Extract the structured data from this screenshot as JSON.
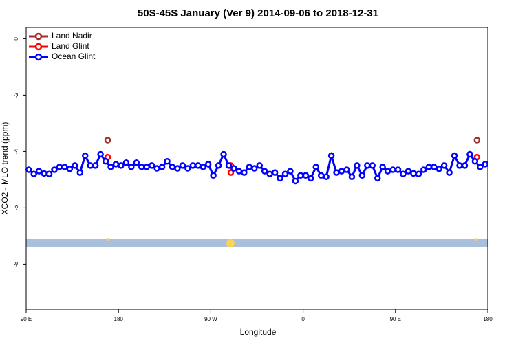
{
  "chart_data": {
    "type": "line",
    "title": "50S-45S January (Ver 9)   2014-09-06 to 2018-12-31",
    "x_label": "Longitude",
    "y_label": "XCO2 - MLO trend (ppm)",
    "xlim": [
      90,
      540
    ],
    "ylim": [
      -9.6,
      0.4
    ],
    "xticks": [
      {
        "value": 90,
        "label": "90 E"
      },
      180,
      {
        "value": 270,
        "label": "90 W"
      },
      {
        "value": 360,
        "label": "0"
      },
      {
        "value": 450,
        "label": "90 E"
      },
      {
        "value": 540,
        "label": "180"
      }
    ],
    "yticks": [
      0,
      -2,
      -4,
      -6,
      -8
    ],
    "legend": "top-left",
    "series": [
      {
        "name": "Land Nadir",
        "color": "#a52a2a",
        "x": [
          169.5,
          529.5
        ],
        "values": [
          -3.6,
          -3.6
        ]
      },
      {
        "name": "Land Glint",
        "color": "#ff0000",
        "x": [
          169.5,
          289.5,
          289.5,
          529.5
        ],
        "values": [
          -4.2,
          -4.5,
          -4.75,
          -4.2
        ]
      },
      {
        "name": "Ocean Glint",
        "color": "#0000ff",
        "x": [
          92.5,
          97.5,
          102.5,
          107.5,
          112.5,
          117.5,
          122.5,
          127.5,
          132.5,
          137.5,
          142.5,
          147.5,
          152.5,
          157.5,
          162.5,
          167.5,
          172.5,
          177.5,
          182.5,
          187.5,
          192.5,
          197.5,
          202.5,
          207.5,
          212.5,
          217.5,
          222.5,
          227.5,
          232.5,
          237.5,
          242.5,
          247.5,
          252.5,
          257.5,
          262.5,
          267.5,
          272.5,
          277.5,
          282.5,
          287.5,
          292.5,
          297.5,
          302.5,
          307.5,
          312.5,
          317.5,
          322.5,
          327.5,
          332.5,
          337.5,
          342.5,
          347.5,
          352.5,
          357.5,
          362.5,
          367.5,
          372.5,
          377.5,
          382.5,
          387.5,
          392.5,
          397.5,
          402.5,
          407.5,
          412.5,
          417.5,
          422.5,
          427.5,
          432.5,
          437.5,
          442.5,
          447.5,
          452.5,
          457.5,
          462.5,
          467.5,
          472.5,
          477.5,
          482.5,
          487.5,
          492.5,
          497.5,
          502.5,
          507.5,
          512.5,
          517.5,
          522.5,
          527.5,
          532.5,
          537.5
        ],
        "values": [
          -4.65,
          -4.8,
          -4.7,
          -4.78,
          -4.8,
          -4.65,
          -4.55,
          -4.55,
          -4.62,
          -4.5,
          -4.75,
          -4.15,
          -4.5,
          -4.5,
          -4.1,
          -4.35,
          -4.55,
          -4.45,
          -4.5,
          -4.4,
          -4.55,
          -4.4,
          -4.55,
          -4.55,
          -4.5,
          -4.6,
          -4.55,
          -4.35,
          -4.55,
          -4.6,
          -4.5,
          -4.6,
          -4.5,
          -4.5,
          -4.55,
          -4.45,
          -4.85,
          -4.5,
          -4.1,
          -4.5,
          -4.6,
          -4.7,
          -4.75,
          -4.55,
          -4.6,
          -4.5,
          -4.7,
          -4.8,
          -4.75,
          -4.95,
          -4.8,
          -4.7,
          -5.05,
          -4.85,
          -4.85,
          -4.95,
          -4.55,
          -4.85,
          -4.9,
          -4.15,
          -4.75,
          -4.7,
          -4.65,
          -4.9,
          -4.5,
          -4.85,
          -4.5,
          -4.5,
          -4.95,
          -4.55,
          -4.7,
          -4.65,
          -4.65,
          -4.8,
          -4.7,
          -4.78,
          -4.8,
          -4.65,
          -4.55,
          -4.55,
          -4.62,
          -4.5,
          -4.75,
          -4.15,
          -4.5,
          -4.5,
          -4.1,
          -4.35,
          -4.55,
          -4.45
        ]
      }
    ]
  }
}
